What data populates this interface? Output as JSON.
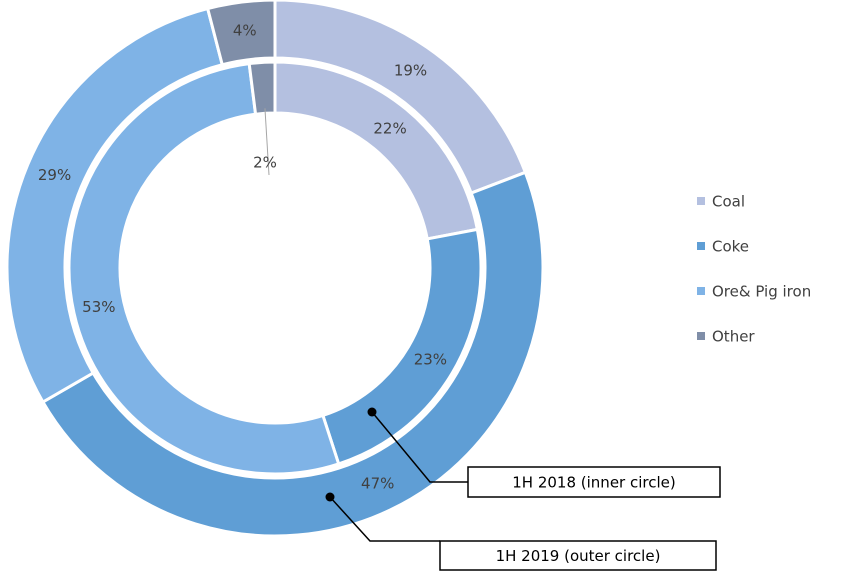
{
  "chart_data": {
    "type": "donut",
    "categories": [
      "Coal",
      "Coke",
      "Ore& Pig iron",
      "Other"
    ],
    "colors": [
      "#b4c0e0",
      "#5f9ed5",
      "#7fb3e6",
      "#7f8ea8"
    ],
    "legend": "right",
    "series": [
      {
        "name": "1H 2018 (inner circle)",
        "ring": "inner",
        "values": [
          22,
          23,
          53,
          2
        ],
        "value_labels": [
          "22%",
          "23%",
          "53%",
          "2%"
        ]
      },
      {
        "name": "1H 2019 (outer circle)",
        "ring": "outer",
        "values": [
          19,
          47,
          29,
          4
        ],
        "value_labels": [
          "19%",
          "47%",
          "29%",
          "4%"
        ]
      }
    ]
  }
}
